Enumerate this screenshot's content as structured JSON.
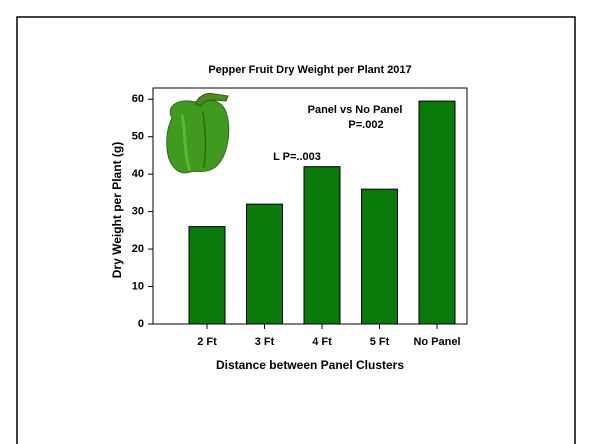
{
  "chart_data": {
    "type": "bar",
    "title": "Pepper Fruit Dry Weight per Plant 2017",
    "xlabel": "Distance between Panel Clusters",
    "ylabel": "Dry Weight per Plant (g)",
    "categories": [
      "2 Ft",
      "3 Ft",
      "4 Ft",
      "5 Ft",
      "No Panel"
    ],
    "values": [
      26,
      32,
      42,
      36,
      59.5
    ],
    "color": "#0a7a0a",
    "ylim": [
      0,
      63
    ],
    "yticks": [
      0,
      10,
      20,
      30,
      40,
      50,
      60
    ],
    "annotations": [
      "Panel vs No Panel",
      "P=.002",
      "L  P=..003"
    ]
  }
}
